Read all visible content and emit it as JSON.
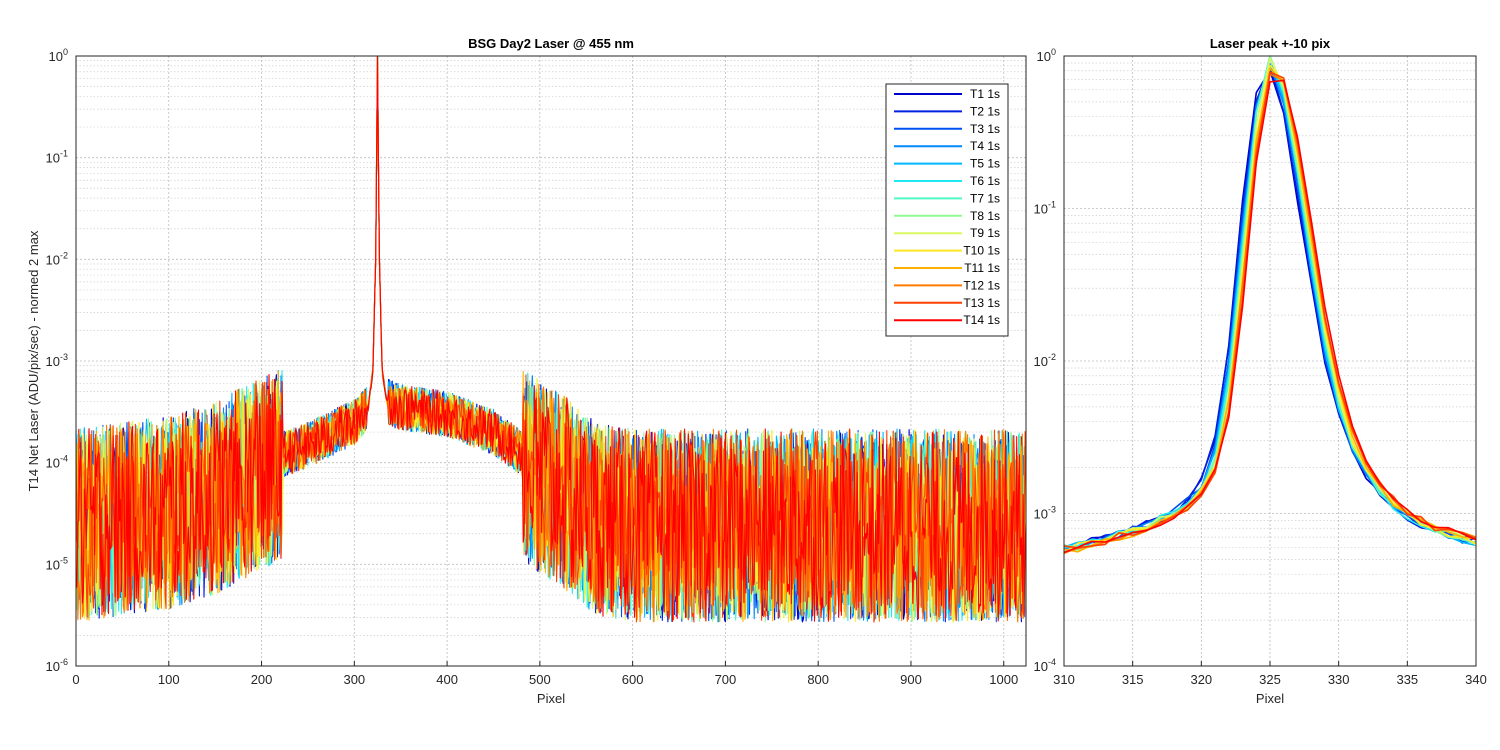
{
  "series_colors": [
    "#0000cc",
    "#0020e0",
    "#0050f0",
    "#0088ff",
    "#00b8ff",
    "#20e8f0",
    "#50f8c8",
    "#90f890",
    "#d8f860",
    "#ffe820",
    "#ffb000",
    "#ff7a00",
    "#ff4000",
    "#ff0000"
  ],
  "chart_data": [
    {
      "type": "line",
      "title": "BSG  Day2 Laser @ 455 nm",
      "xlabel": "Pixel",
      "ylabel": "T14 Net Laser (ADU/pix/sec) - normed 2 max",
      "xlim": [
        0,
        1024
      ],
      "ylim": [
        1e-06,
        1
      ],
      "yscale": "log",
      "grid": true,
      "legend_position": "top-right",
      "xticks": [
        "0",
        "100",
        "200",
        "300",
        "400",
        "500",
        "600",
        "700",
        "800",
        "900",
        "1000"
      ],
      "yticks": [
        {
          "base": "10",
          "exp": "-6"
        },
        {
          "base": "10",
          "exp": "-5"
        },
        {
          "base": "10",
          "exp": "-4"
        },
        {
          "base": "10",
          "exp": "-3"
        },
        {
          "base": "10",
          "exp": "-2"
        },
        {
          "base": "10",
          "exp": "-1"
        },
        {
          "base": "10",
          "exp": "0"
        }
      ],
      "legend": [
        "T1 1s",
        "T2 1s",
        "T3 1s",
        "T4 1s",
        "T5 1s",
        "T6 1s",
        "T7 1s",
        "T8 1s",
        "T9 1s",
        "T10 1s",
        "T11 1s",
        "T12 1s",
        "T13 1s",
        "T14 1s"
      ],
      "peak_pixel": 325,
      "envelope": {
        "x": [
          0,
          50,
          100,
          150,
          200,
          250,
          300,
          315,
          320,
          323,
          325,
          327,
          330,
          335,
          350,
          400,
          450,
          500,
          530,
          560,
          600,
          700,
          800,
          900,
          1024
        ],
        "y": [
          3e-05,
          3.5e-05,
          4e-05,
          5.5e-05,
          0.0001,
          0.00015,
          0.00025,
          0.00035,
          0.0008,
          0.01,
          1.0,
          0.01,
          0.0008,
          0.0004,
          0.00035,
          0.0003,
          0.0002,
          9e-05,
          6e-05,
          3.5e-05,
          3e-05,
          3e-05,
          3e-05,
          3e-05,
          3e-05
        ]
      }
    },
    {
      "type": "line",
      "title": "Laser peak +-10 pix",
      "xlabel": "Pixel",
      "ylabel": "",
      "xlim": [
        310,
        340
      ],
      "ylim": [
        0.0001,
        1
      ],
      "yscale": "log",
      "grid": true,
      "xticks": [
        "310",
        "315",
        "320",
        "325",
        "330",
        "335",
        "340"
      ],
      "yticks": [
        {
          "base": "10",
          "exp": "-4"
        },
        {
          "base": "10",
          "exp": "-3"
        },
        {
          "base": "10",
          "exp": "-2"
        },
        {
          "base": "10",
          "exp": "-1"
        },
        {
          "base": "10",
          "exp": "0"
        }
      ],
      "x": [
        310,
        311,
        312,
        313,
        314,
        315,
        316,
        317,
        318,
        319,
        320,
        321,
        322,
        323,
        324,
        325,
        326,
        327,
        328,
        329,
        330,
        331,
        332,
        333,
        334,
        335,
        336,
        337,
        338,
        339,
        340
      ],
      "profile": [
        0.00058,
        0.0006,
        0.00064,
        0.00068,
        0.00072,
        0.00076,
        0.00082,
        0.0009,
        0.001,
        0.00115,
        0.0014,
        0.0022,
        0.0065,
        0.05,
        0.4,
        1.0,
        0.62,
        0.19,
        0.05,
        0.014,
        0.0055,
        0.0028,
        0.0019,
        0.0014,
        0.00115,
        0.00098,
        0.00088,
        0.0008,
        0.00074,
        0.00069,
        0.00065
      ]
    }
  ]
}
